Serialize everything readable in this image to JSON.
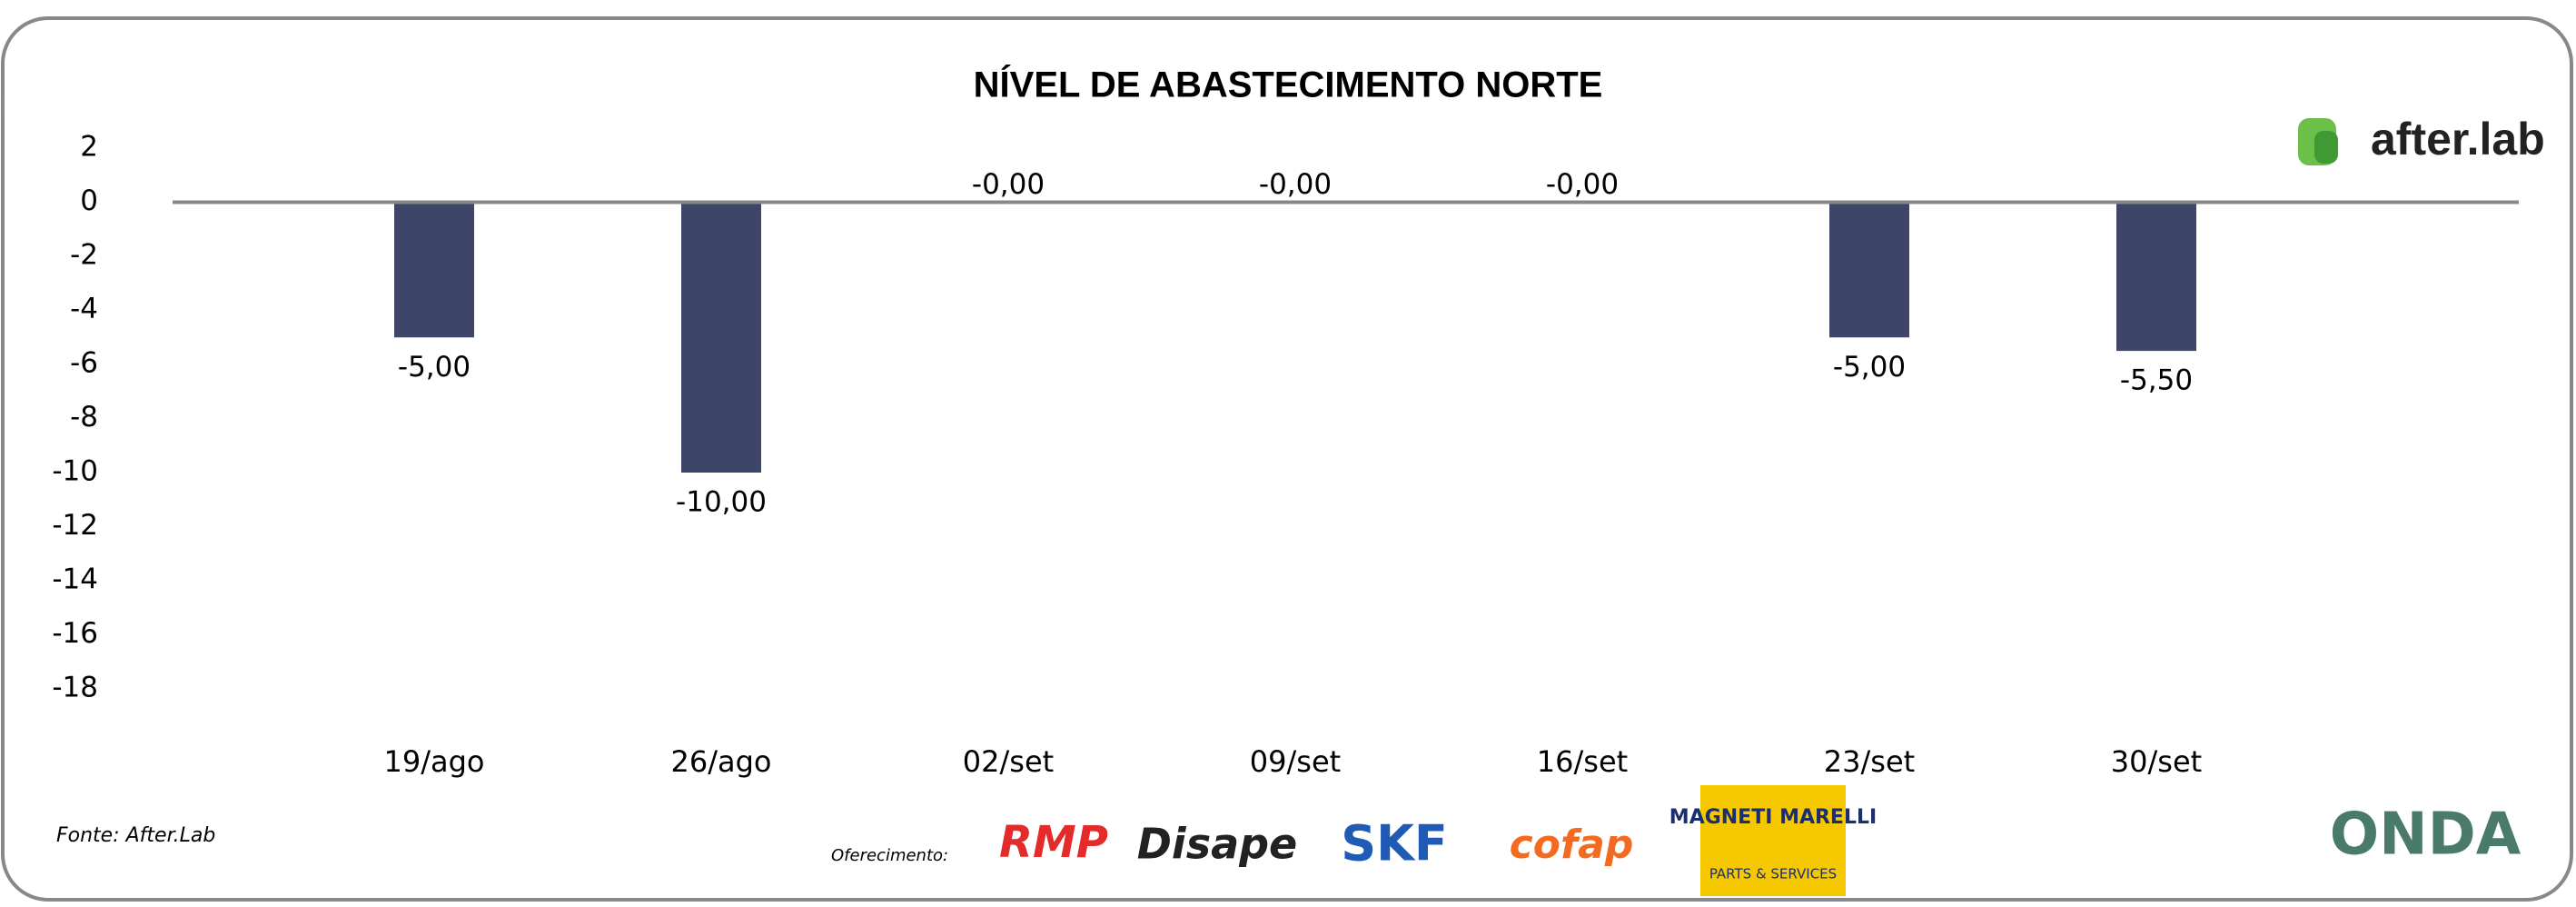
{
  "chart_data": {
    "type": "bar",
    "title": "NÍVEL DE ABASTECIMENTO NORTE",
    "categories": [
      "19/ago",
      "26/ago",
      "02/set",
      "09/set",
      "16/set",
      "23/set",
      "30/set"
    ],
    "values": [
      -5,
      -10,
      0,
      0,
      0,
      -5,
      -5.5
    ],
    "value_labels": [
      "-5,00",
      "-10,00",
      "-0,00",
      "-0,00",
      "-0,00",
      "-5,00",
      "-5,50"
    ],
    "color": "#3d4669",
    "ylim": [
      -18,
      2
    ],
    "yticks": [
      2,
      0,
      -2,
      -4,
      -6,
      -8,
      -10,
      -12,
      -14,
      -16,
      -18
    ]
  },
  "source": "Fonte: After.Lab",
  "sponsor_label": "Oferecimento:",
  "brand": "after.lab",
  "logos": [
    "RMP",
    "Disape",
    "SKF",
    "cofap",
    "MAGNETI MARELLI",
    "PARTS & SERVICES",
    "ONDA"
  ]
}
